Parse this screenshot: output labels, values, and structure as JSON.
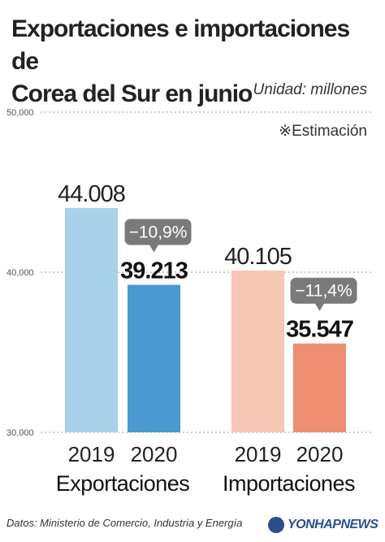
{
  "unit": "Unidad: millones",
  "note": "※Estimación",
  "source": "Datos: Ministerio de Comercio, Industria y Energía",
  "logo_text": "YONHAPNEWS",
  "colors": {
    "exp_2019": "#a9d1ec",
    "exp_2020": "#4a9ad0",
    "imp_2019": "#f7c6b4",
    "imp_2020": "#ee8f72",
    "badge": "#7a7a7a"
  },
  "chart_data": {
    "type": "bar",
    "title": "Exportaciones e importaciones de Corea del Sur en junio",
    "title_lines": [
      "Exportaciones e importaciones de",
      "Corea del Sur en junio"
    ],
    "ylim": [
      30000,
      50000
    ],
    "yticks": [
      30000,
      40000,
      50000
    ],
    "ytick_labels": [
      "30,000",
      "40,000",
      "50,000"
    ],
    "groups": [
      {
        "name": "Exportaciones",
        "bars": [
          {
            "year": "2019",
            "value": 44008,
            "label": "44.008"
          },
          {
            "year": "2020",
            "value": 39213,
            "label": "39.213"
          }
        ],
        "change": "−10,9%"
      },
      {
        "name": "Importaciones",
        "bars": [
          {
            "year": "2019",
            "value": 40105,
            "label": "40.105"
          },
          {
            "year": "2020",
            "value": 35547,
            "label": "35.547"
          }
        ],
        "change": "−11,4%"
      }
    ]
  }
}
